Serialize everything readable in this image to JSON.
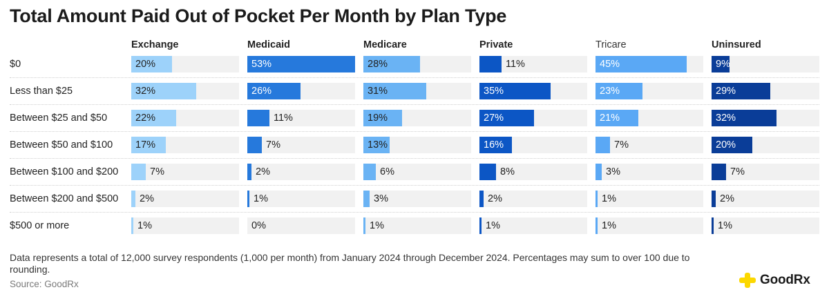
{
  "title": "Total Amount Paid Out of Pocket Per Month by Plan Type",
  "footnote": "Data represents a total of 12,000 survey respondents (1,000 per month) from January 2024 through December 2024. Percentages may sum to over 100 due to rounding.",
  "source": "Source: GoodRx",
  "logo": {
    "text": "GoodRx",
    "icon": "plus-logo-icon",
    "icon_color": "#fcd800"
  },
  "colors": {
    "track": "#f1f1f1",
    "label_dark_text": "#222222",
    "label_light_text": "#ffffff"
  },
  "chart_data": {
    "type": "bar",
    "layout": "small-multiples-horizontal",
    "categories": [
      "$0",
      "Less than $25",
      "Between $25 and $50",
      "Between $50 and $100",
      "Between $100 and $200",
      "Between $200 and $500",
      "$500 or more"
    ],
    "value_format": "{v}%",
    "max_value": 53,
    "series": [
      {
        "name": "Exchange",
        "color": "#9dd2fa",
        "label_text": "dark",
        "header_bold": true,
        "values": [
          20,
          32,
          22,
          17,
          7,
          2,
          1
        ]
      },
      {
        "name": "Medicaid",
        "color": "#2679dc",
        "label_text": "light",
        "header_bold": true,
        "values": [
          53,
          26,
          11,
          7,
          2,
          1,
          0
        ]
      },
      {
        "name": "Medicare",
        "color": "#6ab3f4",
        "label_text": "dark",
        "header_bold": true,
        "values": [
          28,
          31,
          19,
          13,
          6,
          3,
          1
        ]
      },
      {
        "name": "Private",
        "color": "#0c56c5",
        "label_text": "light",
        "header_bold": true,
        "values": [
          11,
          35,
          27,
          16,
          8,
          2,
          1
        ]
      },
      {
        "name": "Tricare",
        "color": "#5aa8f5",
        "label_text": "light",
        "header_bold": false,
        "values": [
          45,
          23,
          21,
          7,
          3,
          1,
          1
        ]
      },
      {
        "name": "Uninsured",
        "color": "#0a3d98",
        "label_text": "light",
        "header_bold": true,
        "values": [
          9,
          29,
          32,
          20,
          7,
          2,
          1
        ]
      }
    ]
  }
}
